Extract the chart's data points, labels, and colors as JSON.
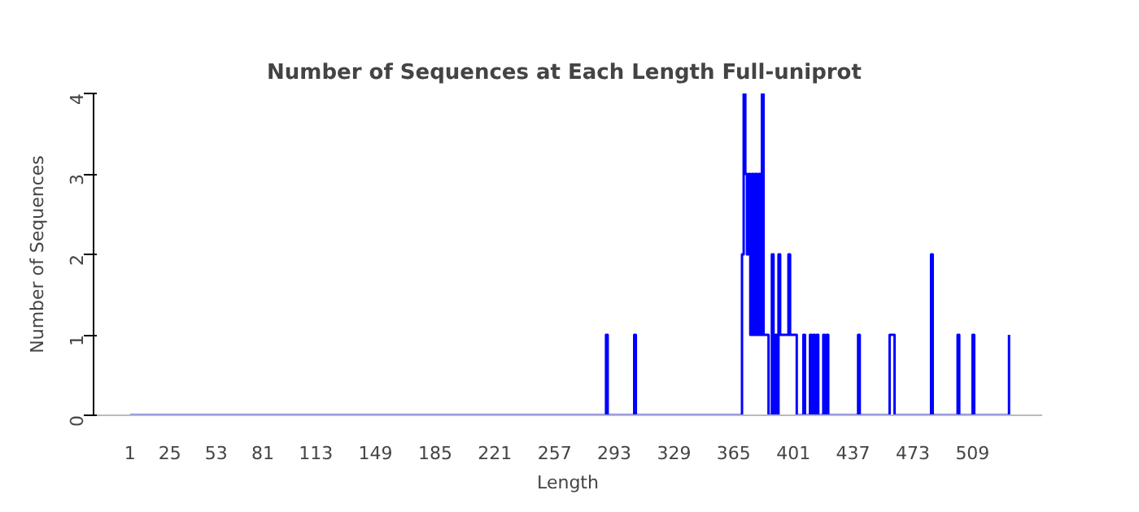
{
  "chart_data": {
    "type": "step",
    "title": "Number of Sequences at Each Length  Full-uniprot",
    "xlabel": "Length",
    "ylabel": "Number of Sequences",
    "series": [
      {
        "color": "#0000ff",
        "x": [
          1,
          288,
          289,
          305,
          306,
          370,
          371,
          372,
          373,
          374,
          375,
          376,
          377,
          378,
          379,
          380,
          381,
          382,
          383,
          386,
          388,
          389,
          390,
          391,
          392,
          393,
          398,
          399,
          403,
          407,
          408,
          411,
          412,
          413,
          414,
          415,
          416,
          419,
          420,
          421,
          422,
          440,
          441,
          459,
          462,
          484,
          485,
          500,
          501,
          509,
          510,
          531
        ],
        "values": [
          0,
          1,
          0,
          1,
          0,
          2,
          4,
          3,
          2,
          3,
          1,
          3,
          1,
          3,
          1,
          3,
          1,
          4,
          1,
          0,
          2,
          0,
          1,
          0,
          2,
          1,
          2,
          1,
          0,
          1,
          0,
          1,
          0,
          1,
          0,
          1,
          0,
          1,
          0,
          1,
          0,
          1,
          0,
          1,
          0,
          2,
          0,
          1,
          0,
          1,
          0,
          1
        ]
      }
    ],
    "xlim": [
      -21,
      551
    ],
    "xticks": [
      1,
      25,
      53,
      81,
      113,
      149,
      185,
      221,
      257,
      293,
      329,
      365,
      401,
      437,
      473,
      509
    ],
    "ylim": [
      0,
      4
    ],
    "yticks": [
      0,
      1,
      2,
      3,
      4
    ],
    "grid": false
  }
}
